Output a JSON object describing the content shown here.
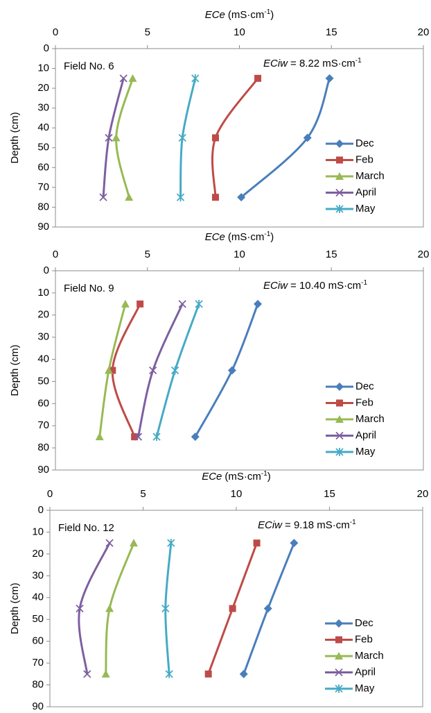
{
  "chart_data": [
    {
      "type": "line",
      "x_label": [
        "ECe",
        "(mS·cm",
        "-1",
        ")"
      ],
      "y_label": "Depth (cm)",
      "field_label": "Field No. 6",
      "eciw_label": [
        "ECiw",
        "= 8.22 mS·cm",
        "-1"
      ],
      "depths": [
        15,
        45,
        75
      ],
      "series": [
        {
          "name": "Dec",
          "color": "#4a7ebb",
          "marker": "diamond",
          "values": [
            14.9,
            13.7,
            10.1
          ]
        },
        {
          "name": "Feb",
          "color": "#be4b48",
          "marker": "square",
          "values": [
            11.0,
            8.7,
            8.7
          ]
        },
        {
          "name": "March",
          "color": "#98b954",
          "marker": "triangle",
          "values": [
            4.2,
            3.3,
            4.0
          ]
        },
        {
          "name": "April",
          "color": "#7d5fa0",
          "marker": "x",
          "values": [
            3.7,
            2.9,
            2.6
          ]
        },
        {
          "name": "May",
          "color": "#46aac5",
          "marker": "star",
          "values": [
            7.6,
            6.9,
            6.8
          ]
        }
      ],
      "xlim": [
        0,
        20
      ],
      "xticks": [
        0,
        5,
        10,
        15,
        20
      ],
      "ylim": [
        0,
        90
      ],
      "yticks": [
        0,
        10,
        20,
        30,
        40,
        50,
        60,
        70,
        80,
        90
      ],
      "invert_y": true,
      "legend": "right",
      "smooth": true
    },
    {
      "type": "line",
      "x_label": [
        "ECe",
        "(mS·cm",
        "-1",
        ")"
      ],
      "y_label": "Depth (cm)",
      "field_label": "Field No. 9",
      "eciw_label": [
        "ECiw",
        "= 10.40 mS·cm",
        "-1"
      ],
      "depths": [
        15,
        45,
        75
      ],
      "series": [
        {
          "name": "Dec",
          "color": "#4a7ebb",
          "marker": "diamond",
          "values": [
            11.0,
            9.6,
            7.6
          ]
        },
        {
          "name": "Feb",
          "color": "#be4b48",
          "marker": "square",
          "values": [
            4.6,
            3.1,
            4.3
          ]
        },
        {
          "name": "March",
          "color": "#98b954",
          "marker": "triangle",
          "values": [
            3.8,
            2.9,
            2.4
          ]
        },
        {
          "name": "April",
          "color": "#7d5fa0",
          "marker": "x",
          "values": [
            6.9,
            5.3,
            4.5
          ]
        },
        {
          "name": "May",
          "color": "#46aac5",
          "marker": "star",
          "values": [
            7.8,
            6.5,
            5.5
          ]
        }
      ],
      "xlim": [
        0,
        20
      ],
      "xticks": [
        0,
        5,
        10,
        15,
        20
      ],
      "ylim": [
        0,
        90
      ],
      "yticks": [
        0,
        10,
        20,
        30,
        40,
        50,
        60,
        70,
        80,
        90
      ],
      "invert_y": true,
      "legend": "right",
      "smooth": true
    },
    {
      "type": "line",
      "x_label": [
        "ECe",
        "(mS·cm",
        "-1",
        ")"
      ],
      "y_label": "Depth (cm)",
      "field_label": "Field No. 12",
      "eciw_label": [
        "ECiw",
        "= 9.18 mS·cm",
        "-1"
      ],
      "depths": [
        15,
        45,
        75
      ],
      "series": [
        {
          "name": "Dec",
          "color": "#4a7ebb",
          "marker": "diamond",
          "values": [
            13.1,
            11.7,
            10.4
          ]
        },
        {
          "name": "Feb",
          "color": "#be4b48",
          "marker": "square",
          "values": [
            11.1,
            9.8,
            8.5
          ]
        },
        {
          "name": "March",
          "color": "#98b954",
          "marker": "triangle",
          "values": [
            4.5,
            3.2,
            3.0
          ]
        },
        {
          "name": "April",
          "color": "#7d5fa0",
          "marker": "x",
          "values": [
            3.2,
            1.6,
            2.0
          ]
        },
        {
          "name": "May",
          "color": "#46aac5",
          "marker": "star",
          "values": [
            6.5,
            6.2,
            6.4
          ]
        }
      ],
      "xlim": [
        0,
        20
      ],
      "xticks": [
        0,
        5,
        10,
        15,
        20
      ],
      "ylim": [
        0,
        90
      ],
      "yticks": [
        0,
        10,
        20,
        30,
        40,
        50,
        60,
        70,
        80,
        90
      ],
      "invert_y": true,
      "legend": "right",
      "smooth": true
    }
  ]
}
